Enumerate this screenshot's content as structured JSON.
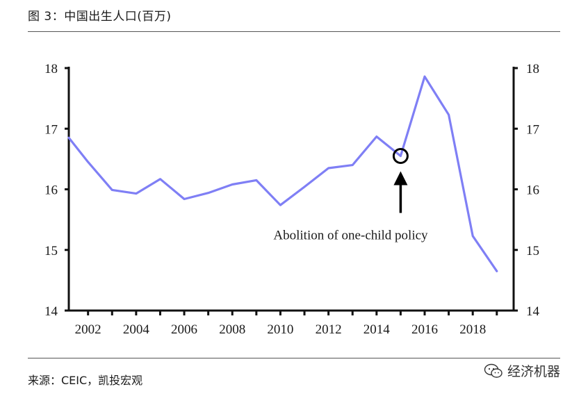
{
  "figure": {
    "title": "图 3：中国出生人口(百万)",
    "source": "来源：CEIC，凯投宏观",
    "watermark": "经济机器",
    "watermark_icon": "wechat-logo-icon"
  },
  "chart_data": {
    "type": "line",
    "title": "",
    "xlabel": "",
    "ylabel": "",
    "x": [
      2001.0,
      2002.0,
      2003.0,
      2004.0,
      2005.0,
      2006.0,
      2007.0,
      2008.0,
      2009.0,
      2010.0,
      2011.0,
      2012.0,
      2013.0,
      2014.0,
      2015.0,
      2016.0,
      2017.0,
      2018.0,
      2019.0
    ],
    "series": [
      {
        "name": "",
        "color": "#7f7ff5",
        "values": [
          16.95,
          16.45,
          15.99,
          15.93,
          16.17,
          15.84,
          15.94,
          16.08,
          16.15,
          15.74,
          16.04,
          16.35,
          16.4,
          16.87,
          16.55,
          17.86,
          17.23,
          15.23,
          14.65
        ]
      }
    ],
    "xlim": [
      2001.2,
      2019.7
    ],
    "ylim": [
      14,
      18
    ],
    "x_ticks": [
      "2002",
      "2004",
      "2006",
      "2008",
      "2010",
      "2012",
      "2014",
      "2016",
      "2018"
    ],
    "y_ticks": [
      "14",
      "15",
      "16",
      "17",
      "18"
    ],
    "y2_ticks": [
      "14",
      "15",
      "16",
      "17",
      "18"
    ],
    "grid": false,
    "annotation": {
      "text": "Abolition of one-child policy",
      "x": 2015.0,
      "y": 16.55
    }
  }
}
